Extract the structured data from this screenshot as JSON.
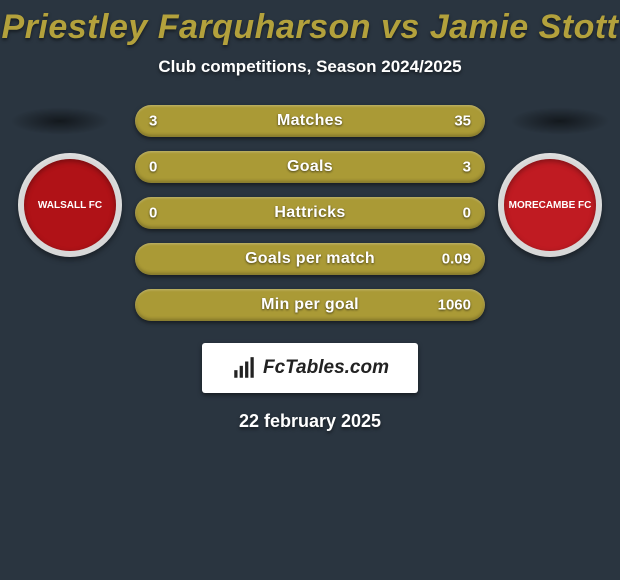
{
  "header": {
    "title": "Priestley Farquharson vs Jamie Stott",
    "title_color": "#b3a13c",
    "title_fontsize": 34,
    "subtitle": "Club competitions, Season 2024/2025",
    "subtitle_fontsize": 17
  },
  "teams": {
    "left": {
      "name": "walsall-fc",
      "badge_outer_color": "#d8d8d8",
      "badge_inner_color": "#b01217",
      "badge_text": "WALSALL FC",
      "badge_text_color": "#ffffff"
    },
    "right": {
      "name": "morecambe-fc",
      "badge_outer_color": "#d8d8d8",
      "badge_inner_color": "#c01b22",
      "badge_text": "MORECAMBE FC",
      "badge_text_color": "#ffffff"
    }
  },
  "stats": {
    "bar_color": "#aa9a36",
    "label_fontsize": 16,
    "value_fontsize": 15,
    "rows": [
      {
        "label": "Matches",
        "left": "3",
        "right": "35"
      },
      {
        "label": "Goals",
        "left": "0",
        "right": "3"
      },
      {
        "label": "Hattricks",
        "left": "0",
        "right": "0"
      },
      {
        "label": "Goals per match",
        "left": "",
        "right": "0.09"
      },
      {
        "label": "Min per goal",
        "left": "",
        "right": "1060"
      }
    ]
  },
  "brand": {
    "text": "FcTables.com",
    "icon_color": "#222222"
  },
  "footer": {
    "date": "22 february 2025",
    "fontsize": 18
  }
}
